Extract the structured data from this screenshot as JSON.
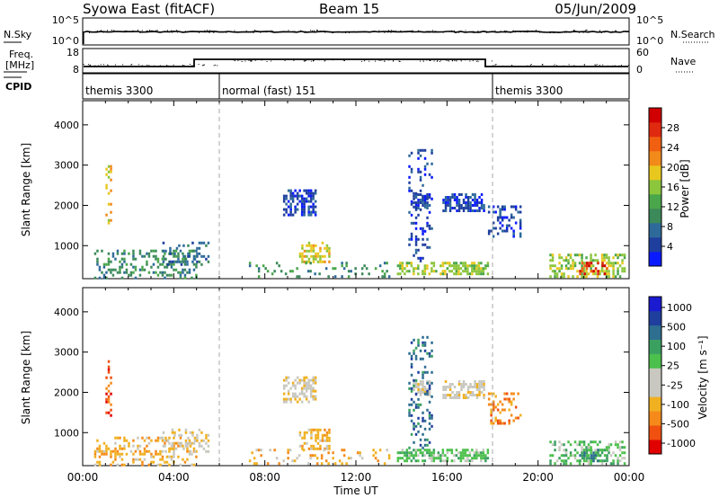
{
  "header": {
    "title": "Syowa East (fitACF)",
    "beam": "Beam 15",
    "date": "05/Jun/2009"
  },
  "nsky_panel": {
    "left_label": "N.Sky",
    "left_ticks": [
      "10^5",
      "10^0"
    ],
    "right_label": "N.Search",
    "right_ticks": [
      "10^5",
      "10^0"
    ]
  },
  "freq_panel": {
    "left_label_1": "Freq.",
    "left_label_2": "[MHz]",
    "left_ticks": [
      "18",
      "8"
    ],
    "right_label": "Nave",
    "right_ticks": [
      "60",
      "0"
    ]
  },
  "cpid_panel": {
    "label": "CPID",
    "segments": [
      {
        "start_hour": 0,
        "text": "themis 3300"
      },
      {
        "start_hour": 6,
        "text": "normal (fast) 151"
      },
      {
        "start_hour": 18,
        "text": "themis 3300"
      }
    ]
  },
  "colors": {
    "power_scale": [
      "#0a1aff",
      "#1f3f9e",
      "#2d6a9a",
      "#3c8a5a",
      "#4aa64a",
      "#8cc63c",
      "#e8c81e",
      "#f28a1a",
      "#f06010",
      "#e02a10",
      "#d00000"
    ],
    "velocity_scale": [
      "#e00000",
      "#f05010",
      "#f58a1a",
      "#f0b020",
      "#c8c8c0",
      "#c8c8c0",
      "#4cc04c",
      "#3aa060",
      "#2e6e90",
      "#1f3f9e",
      "#1a1ad0"
    ]
  },
  "chart_data": [
    {
      "type": "heatmap",
      "name": "power",
      "ylabel": "Slant Range [km]",
      "colorbar_label": "Power [dB]",
      "colorbar_ticks": [
        "4",
        "8",
        "12",
        "16",
        "20",
        "24",
        "28"
      ],
      "ylim": [
        180,
        4600
      ],
      "yticks": [
        1000,
        2000,
        3000,
        4000
      ],
      "xlim": [
        0,
        24
      ],
      "xticks": [
        "00:00",
        "04:00",
        "08:00",
        "12:00",
        "16:00",
        "20:00",
        "00:00"
      ],
      "regions": [
        {
          "x": [
            0.5,
            5.0
          ],
          "y": [
            200,
            900
          ],
          "level": 3,
          "density": 0.35
        },
        {
          "x": [
            3.5,
            5.5
          ],
          "y": [
            500,
            1100
          ],
          "level": 2,
          "density": 0.3
        },
        {
          "x": [
            1.0,
            1.2
          ],
          "y": [
            1400,
            3000
          ],
          "level": 6,
          "density": 0.3
        },
        {
          "x": [
            8.8,
            10.2
          ],
          "y": [
            1750,
            2400
          ],
          "level": 1,
          "density": 0.6
        },
        {
          "x": [
            9.5,
            10.8
          ],
          "y": [
            600,
            1100
          ],
          "level": 6,
          "density": 0.5
        },
        {
          "x": [
            13.8,
            17.8
          ],
          "y": [
            300,
            600
          ],
          "level": 5,
          "density": 0.6
        },
        {
          "x": [
            14.5,
            15.2
          ],
          "y": [
            1900,
            2300
          ],
          "level": 1,
          "density": 0.7
        },
        {
          "x": [
            15.8,
            17.6
          ],
          "y": [
            1850,
            2300
          ],
          "level": 1,
          "density": 0.6
        },
        {
          "x": [
            14.3,
            15.3
          ],
          "y": [
            600,
            3400
          ],
          "level": 1,
          "density": 0.2
        },
        {
          "x": [
            17.8,
            19.2
          ],
          "y": [
            1200,
            2000
          ],
          "level": 1,
          "density": 0.35
        },
        {
          "x": [
            20.5,
            23.8
          ],
          "y": [
            250,
            800
          ],
          "level": 5,
          "density": 0.45
        },
        {
          "x": [
            21.8,
            23.0
          ],
          "y": [
            300,
            600
          ],
          "level": 9,
          "density": 0.5
        },
        {
          "x": [
            7.2,
            13.5
          ],
          "y": [
            200,
            600
          ],
          "level": 3,
          "density": 0.15
        }
      ]
    },
    {
      "type": "heatmap",
      "name": "velocity",
      "ylabel": "Slant Range [km]",
      "colorbar_label": "Velocity [m s⁻¹]",
      "colorbar_ticks": [
        "1000",
        "500",
        "100",
        "25",
        "-25",
        "-100",
        "-500",
        "-1000"
      ],
      "ylim": [
        180,
        4600
      ],
      "yticks": [
        1000,
        2000,
        3000,
        4000
      ],
      "xlim": [
        0,
        24
      ],
      "xticks": [
        "00:00",
        "04:00",
        "08:00",
        "12:00",
        "16:00",
        "20:00",
        "00:00"
      ],
      "xlabel": "Time UT",
      "regions": [
        {
          "x": [
            0.5,
            5.0
          ],
          "y": [
            200,
            900
          ],
          "level": 3,
          "density": 0.35
        },
        {
          "x": [
            3.5,
            5.5
          ],
          "y": [
            500,
            1100
          ],
          "level": 4,
          "density": 0.3
        },
        {
          "x": [
            1.0,
            1.2
          ],
          "y": [
            1400,
            3000
          ],
          "level": 1,
          "density": 0.3
        },
        {
          "x": [
            8.8,
            10.2
          ],
          "y": [
            1750,
            2400
          ],
          "level": 4,
          "density": 0.6
        },
        {
          "x": [
            9.5,
            10.8
          ],
          "y": [
            600,
            1100
          ],
          "level": 3,
          "density": 0.5
        },
        {
          "x": [
            13.8,
            17.8
          ],
          "y": [
            300,
            600
          ],
          "level": 6,
          "density": 0.6
        },
        {
          "x": [
            14.5,
            15.2
          ],
          "y": [
            1900,
            2300
          ],
          "level": 4,
          "density": 0.7
        },
        {
          "x": [
            15.8,
            17.6
          ],
          "y": [
            1850,
            2300
          ],
          "level": 4,
          "density": 0.6
        },
        {
          "x": [
            14.3,
            15.3
          ],
          "y": [
            600,
            3400
          ],
          "level": 8,
          "density": 0.2
        },
        {
          "x": [
            17.8,
            19.2
          ],
          "y": [
            1200,
            2000
          ],
          "level": 2,
          "density": 0.35
        },
        {
          "x": [
            20.5,
            23.8
          ],
          "y": [
            250,
            800
          ],
          "level": 6,
          "density": 0.45
        },
        {
          "x": [
            21.8,
            23.0
          ],
          "y": [
            300,
            600
          ],
          "level": 7,
          "density": 0.5
        },
        {
          "x": [
            7.2,
            13.5
          ],
          "y": [
            200,
            600
          ],
          "level": 3,
          "density": 0.15
        }
      ]
    }
  ]
}
